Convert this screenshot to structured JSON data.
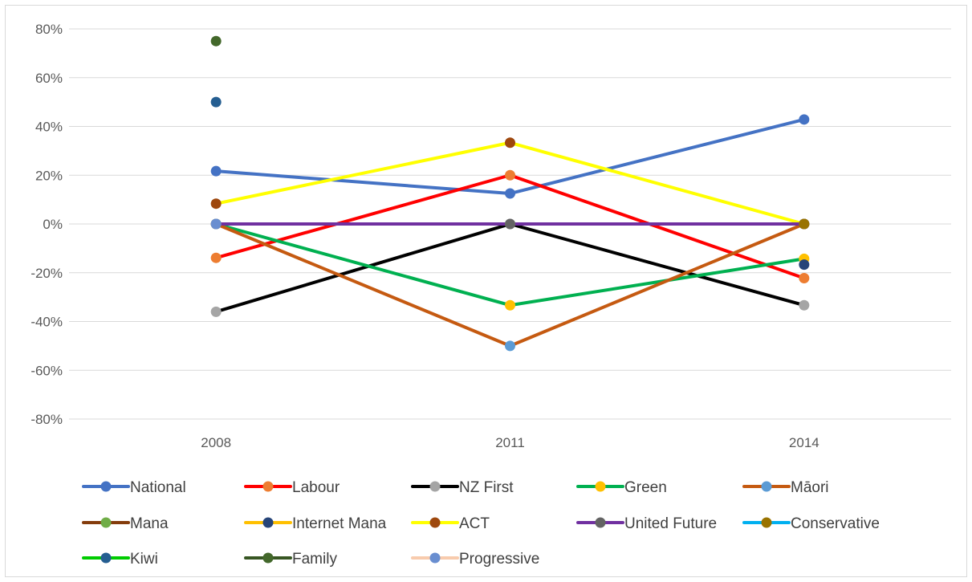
{
  "chart_data": {
    "type": "line",
    "title": "",
    "xlabel": "",
    "ylabel": "",
    "categories": [
      "2008",
      "2011",
      "2014"
    ],
    "ylim": [
      -0.8,
      0.8
    ],
    "yticks": [
      0.8,
      0.6,
      0.4,
      0.2,
      0,
      -0.2,
      -0.4,
      -0.6,
      -0.8
    ],
    "ytick_labels": [
      "80%",
      "60%",
      "40%",
      "20%",
      "0%",
      "-20%",
      "-40%",
      "-60%",
      "-80%"
    ],
    "grid": true,
    "legend_position": "bottom",
    "series": [
      {
        "name": "National",
        "values": [
          0.2167,
          0.125,
          0.4286
        ],
        "line_color": "#4472C4",
        "marker_color": "#4472C4"
      },
      {
        "name": "Labour",
        "values": [
          -0.1389,
          0.2,
          -0.2222
        ],
        "line_color": "#FF0000",
        "marker_color": "#ED7D31"
      },
      {
        "name": "NZ First",
        "values": [
          -0.36,
          0,
          -0.3333
        ],
        "line_color": "#000000",
        "marker_color": "#A5A5A5"
      },
      {
        "name": "Green",
        "values": [
          0,
          -0.3333,
          -0.1429
        ],
        "line_color": "#00B050",
        "marker_color": "#FFC000"
      },
      {
        "name": "Māori",
        "values": [
          0,
          -0.5,
          0
        ],
        "line_color": "#C55A11",
        "marker_color": "#5B9BD5"
      },
      {
        "name": "Mana",
        "values": [
          null,
          null,
          null
        ],
        "line_color": "#843C0C",
        "marker_color": "#70AD47"
      },
      {
        "name": "Internet Mana",
        "values": [
          null,
          null,
          -0.1667
        ],
        "line_color": "#FFC000",
        "marker_color": "#264478"
      },
      {
        "name": "ACT",
        "values": [
          0.0833,
          0.3333,
          0
        ],
        "line_color": "#FFFF00",
        "marker_color": "#9E480E"
      },
      {
        "name": "United Future",
        "values": [
          0,
          0,
          0
        ],
        "line_color": "#7030A0",
        "marker_color": "#636363"
      },
      {
        "name": "Conservative",
        "values": [
          null,
          null,
          0
        ],
        "line_color": "#00B0F0",
        "marker_color": "#997300"
      },
      {
        "name": "Kiwi",
        "values": [
          0.5,
          null,
          null
        ],
        "line_color": "#00CC00",
        "marker_color": "#255E91"
      },
      {
        "name": "Family",
        "values": [
          0.75,
          null,
          null
        ],
        "line_color": "#375623",
        "marker_color": "#43682B"
      },
      {
        "name": "Progressive",
        "values": [
          0,
          null,
          null
        ],
        "line_color": "#F8CBAD",
        "marker_color": "#698ED0"
      }
    ]
  }
}
